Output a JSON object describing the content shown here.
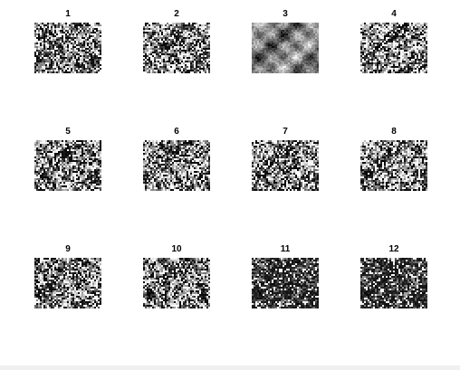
{
  "figure": {
    "subplots": [
      {
        "title": "1",
        "variant": "noisy"
      },
      {
        "title": "2",
        "variant": "noisy"
      },
      {
        "title": "3",
        "variant": "clean"
      },
      {
        "title": "4",
        "variant": "noisy"
      },
      {
        "title": "5",
        "variant": "noisy"
      },
      {
        "title": "6",
        "variant": "noisy"
      },
      {
        "title": "7",
        "variant": "noisy"
      },
      {
        "title": "8",
        "variant": "noisy"
      },
      {
        "title": "9",
        "variant": "noisy"
      },
      {
        "title": "10",
        "variant": "noisy"
      },
      {
        "title": "11",
        "variant": "dark"
      },
      {
        "title": "12",
        "variant": "dark"
      }
    ]
  },
  "colors": {
    "background": "#ffffff",
    "title_text": "#000000",
    "status_strip": "#f0f0f0"
  }
}
